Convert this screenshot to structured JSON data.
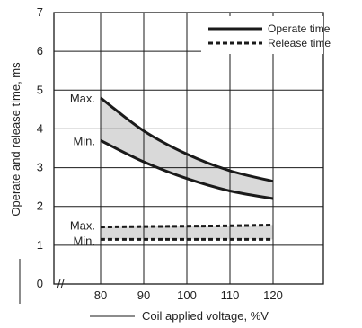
{
  "chart_data": {
    "type": "line",
    "xlabel": "Coil applied voltage, %V",
    "ylabel": "Operate and release time, ms",
    "x_ticks": [
      80,
      90,
      100,
      110,
      120
    ],
    "y_ticks": [
      0,
      1,
      2,
      3,
      4,
      5,
      6,
      7
    ],
    "xlim": [
      80,
      120
    ],
    "ylim": [
      0,
      7
    ],
    "grid": true,
    "legend_position": "top-right",
    "series": [
      {
        "name": "Operate time",
        "style": "solid",
        "band": true,
        "max": {
          "x": [
            80,
            90,
            100,
            110,
            120
          ],
          "y": [
            4.8,
            3.95,
            3.35,
            2.92,
            2.65
          ]
        },
        "min": {
          "x": [
            80,
            90,
            100,
            110,
            120
          ],
          "y": [
            3.7,
            3.15,
            2.72,
            2.4,
            2.2
          ]
        }
      },
      {
        "name": "Release time",
        "style": "dashed",
        "band": true,
        "max": {
          "x": [
            80,
            90,
            100,
            110,
            120
          ],
          "y": [
            1.47,
            1.48,
            1.49,
            1.5,
            1.52
          ]
        },
        "min": {
          "x": [
            80,
            90,
            100,
            110,
            120
          ],
          "y": [
            1.15,
            1.15,
            1.15,
            1.15,
            1.15
          ]
        }
      }
    ],
    "annotations": {
      "operate_max": "Max.",
      "operate_min": "Min.",
      "release_max": "Max.",
      "release_min": "Min."
    },
    "colors": {
      "line": "#1a1a1a",
      "band": "#d9d9d9",
      "grid": "#1a1a1a"
    }
  }
}
